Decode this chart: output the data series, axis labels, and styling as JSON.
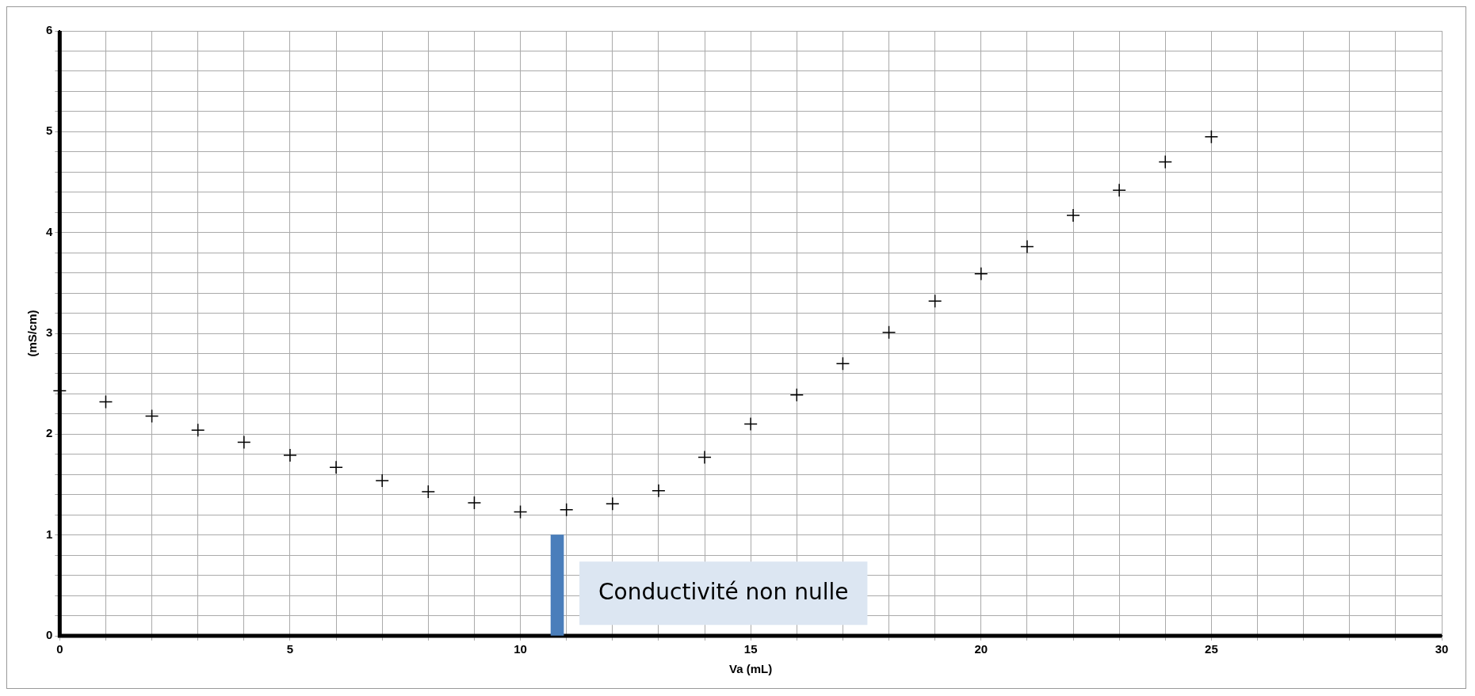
{
  "chart_data": {
    "type": "scatter",
    "xlabel": "Va (mL)",
    "ylabel": "(mS/cm)",
    "x": [
      0,
      1,
      2,
      3,
      4,
      5,
      6,
      7,
      8,
      9,
      10,
      11,
      12,
      13,
      14,
      15,
      16,
      17,
      18,
      19,
      20,
      21,
      22,
      23,
      24,
      25
    ],
    "series": [
      {
        "color": "#000000",
        "values": [
          2.43,
          2.32,
          2.18,
          2.04,
          1.92,
          1.79,
          1.67,
          1.54,
          1.43,
          1.32,
          1.23,
          1.25,
          1.31,
          1.44,
          1.77,
          2.1,
          2.39,
          2.7,
          3.01,
          3.32,
          3.59,
          3.86,
          4.17,
          4.42,
          4.7,
          4.95
        ]
      },
      {
        "type": "bar",
        "color": "#4a7ebb",
        "x": [
          10.8
        ],
        "values": [
          1
        ]
      }
    ],
    "marker": "cross",
    "grid": true,
    "legend": false,
    "xlim": [
      0,
      30
    ],
    "ylim": [
      0,
      6
    ],
    "xticks": [
      0,
      {
        "value": 1,
        "label": null
      },
      {
        "value": 2,
        "label": null
      },
      {
        "value": 3,
        "label": null
      },
      {
        "value": 4,
        "label": null
      },
      5,
      {
        "value": 6,
        "label": null
      },
      {
        "value": 7,
        "label": null
      },
      {
        "value": 8,
        "label": null
      },
      {
        "value": 9,
        "label": null
      },
      10,
      {
        "value": 11,
        "label": null
      },
      {
        "value": 12,
        "label": null
      },
      {
        "value": 13,
        "label": null
      },
      {
        "value": 14,
        "label": null
      },
      15,
      {
        "value": 16,
        "label": null
      },
      {
        "value": 17,
        "label": null
      },
      {
        "value": 18,
        "label": null
      },
      {
        "value": 19,
        "label": null
      },
      20,
      {
        "value": 21,
        "label": null
      },
      {
        "value": 22,
        "label": null
      },
      {
        "value": 23,
        "label": null
      },
      {
        "value": 24,
        "label": null
      },
      25,
      {
        "value": 26,
        "label": null
      },
      {
        "value": 27,
        "label": null
      },
      {
        "value": 28,
        "label": null
      },
      {
        "value": 29,
        "label": null
      },
      30
    ],
    "yticks": [
      0,
      {
        "value": 0.2,
        "label": null
      },
      {
        "value": 0.4,
        "label": null
      },
      {
        "value": 0.6,
        "label": null
      },
      {
        "value": 0.8,
        "label": null
      },
      1,
      {
        "value": 1.2,
        "label": null
      },
      {
        "value": 1.4,
        "label": null
      },
      {
        "value": 1.6,
        "label": null
      },
      {
        "value": 1.8,
        "label": null
      },
      2,
      {
        "value": 2.2,
        "label": null
      },
      {
        "value": 2.4,
        "label": null
      },
      {
        "value": 2.6,
        "label": null
      },
      {
        "value": 2.8,
        "label": null
      },
      3,
      {
        "value": 3.2,
        "label": null
      },
      {
        "value": 3.4,
        "label": null
      },
      {
        "value": 3.6,
        "label": null
      },
      {
        "value": 3.8,
        "label": null
      },
      4,
      {
        "value": 4.2,
        "label": null
      },
      {
        "value": 4.4,
        "label": null
      },
      {
        "value": 4.6,
        "label": null
      },
      {
        "value": 4.8,
        "label": null
      },
      5,
      {
        "value": 5.2,
        "label": null
      },
      {
        "value": 5.4,
        "label": null
      },
      {
        "value": 5.6,
        "label": null
      },
      {
        "value": 5.8,
        "label": null
      },
      6
    ],
    "annotations": [
      "Conductivité non nulle"
    ]
  }
}
